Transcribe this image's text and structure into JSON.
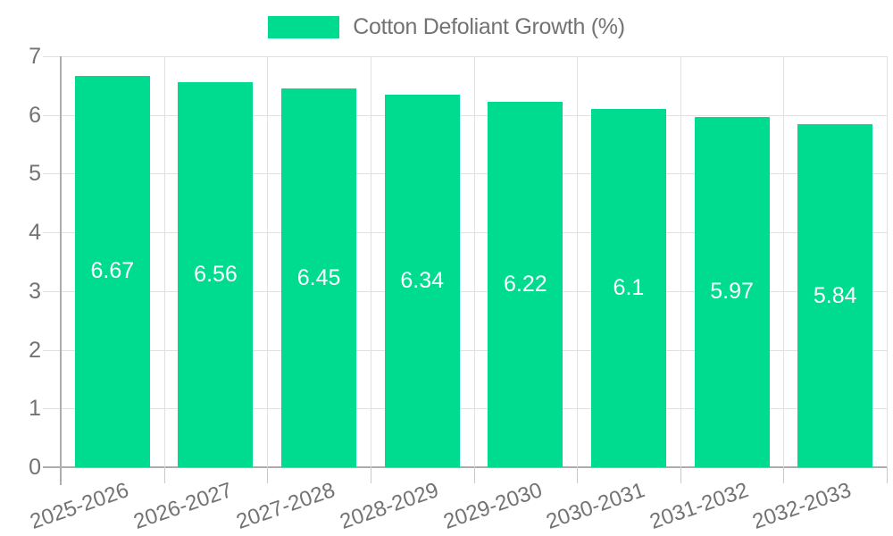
{
  "legend": {
    "label": "Cotton Defoliant Growth (%)"
  },
  "chart_data": {
    "type": "bar",
    "title": "Cotton Defoliant Growth (%)",
    "categories": [
      "2025-2026",
      "2026-2027",
      "2027-2028",
      "2028-2029",
      "2029-2030",
      "2030-2031",
      "2031-2032",
      "2032-2033"
    ],
    "series": [
      {
        "name": "Cotton Defoliant Growth (%)",
        "values": [
          6.67,
          6.56,
          6.45,
          6.34,
          6.22,
          6.1,
          5.97,
          5.84
        ]
      }
    ],
    "value_labels": [
      "6.67",
      "6.56",
      "6.45",
      "6.34",
      "6.22",
      "6.1",
      "5.97",
      "5.84"
    ],
    "xlabel": "",
    "ylabel": "",
    "ylim": [
      0,
      7
    ],
    "y_ticks": [
      0,
      1,
      2,
      3,
      4,
      5,
      6,
      7
    ],
    "grid": true,
    "legend_position": "top",
    "value_labels_position": "inside-center",
    "colors": {
      "bar": "#00DC8F",
      "bar_label": "#FFFFFF",
      "axis_text": "#737373",
      "grid_line": "#E0E0E0",
      "axis_line": "#ADADAD",
      "tick_line": "#C9C9C9",
      "background": "#FFFFFF"
    }
  }
}
